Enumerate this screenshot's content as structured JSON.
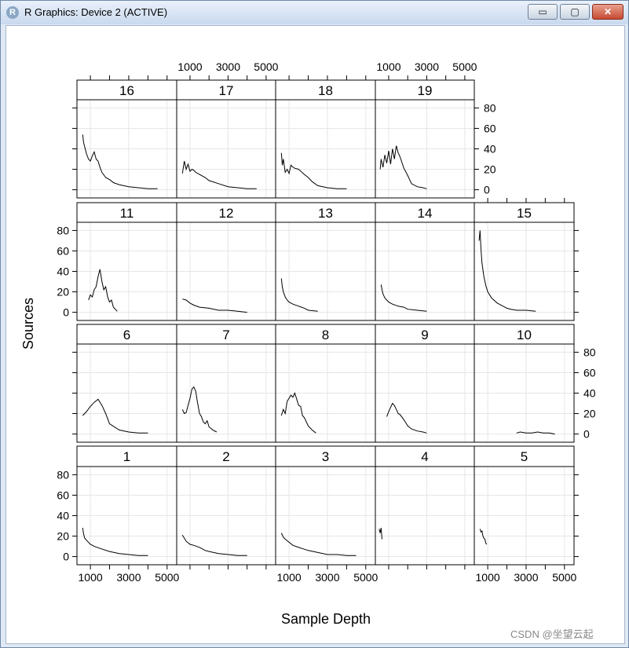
{
  "window": {
    "title": "R Graphics: Device 2 (ACTIVE)",
    "buttons": {
      "minimize": "▭",
      "maximize": "▢",
      "close": "✕"
    }
  },
  "chart_data": {
    "type": "line",
    "layout": "lattice 5 columns x 4 rows, panels numbered 1-5 bottom row upward to 16-19 top row",
    "xlabel": "Sample Depth",
    "ylabel": "Sources",
    "xticks": [
      "1000",
      "3000",
      "5000"
    ],
    "yticks": [
      "0",
      "20",
      "40",
      "60",
      "80"
    ],
    "xlim": [
      300,
      5500
    ],
    "ylim": [
      -8,
      88
    ],
    "grid": true,
    "panels": [
      {
        "label": "1",
        "x": [
          600,
          650,
          700,
          800,
          1000,
          1200,
          1500,
          2000,
          2500,
          3000,
          3500,
          4000
        ],
        "y": [
          28,
          22,
          18,
          16,
          12,
          10,
          8,
          5,
          3,
          2,
          1,
          1
        ]
      },
      {
        "label": "2",
        "x": [
          600,
          700,
          800,
          1000,
          1200,
          1500,
          1800,
          2000,
          2500,
          3000,
          3500,
          4000
        ],
        "y": [
          21,
          18,
          15,
          12,
          11,
          9,
          6,
          5,
          3,
          2,
          1,
          1
        ]
      },
      {
        "label": "3",
        "x": [
          600,
          700,
          800,
          1000,
          1200,
          1500,
          2000,
          2500,
          3000,
          3500,
          4000,
          4500
        ],
        "y": [
          23,
          19,
          17,
          14,
          11,
          9,
          6,
          4,
          2,
          2,
          1,
          1
        ]
      },
      {
        "label": "4",
        "x": [
          500,
          550,
          600,
          650
        ],
        "y": [
          27,
          23,
          28,
          17
        ]
      },
      {
        "label": "5",
        "x": [
          600,
          650,
          700,
          750,
          800,
          850,
          900,
          950
        ],
        "y": [
          27,
          24,
          25,
          20,
          18,
          17,
          13,
          12
        ]
      },
      {
        "label": "6",
        "x": [
          600,
          800,
          1000,
          1200,
          1400,
          1600,
          1800,
          2000,
          2500,
          3000,
          3500,
          4000
        ],
        "y": [
          18,
          22,
          27,
          31,
          34,
          28,
          20,
          10,
          4,
          2,
          1,
          1
        ]
      },
      {
        "label": "7",
        "x": [
          600,
          700,
          800,
          900,
          1000,
          1100,
          1200,
          1300,
          1400,
          1500,
          1600,
          1700,
          1800,
          1900,
          2000,
          2200,
          2400
        ],
        "y": [
          24,
          20,
          21,
          28,
          35,
          44,
          46,
          42,
          30,
          20,
          17,
          12,
          10,
          13,
          7,
          4,
          2
        ]
      },
      {
        "label": "8",
        "x": [
          600,
          700,
          800,
          900,
          1000,
          1100,
          1200,
          1300,
          1400,
          1500,
          1600,
          1700,
          1800,
          2000,
          2200,
          2400
        ],
        "y": [
          18,
          24,
          20,
          32,
          35,
          38,
          36,
          40,
          34,
          28,
          27,
          18,
          16,
          8,
          4,
          1
        ]
      },
      {
        "label": "9",
        "x": [
          900,
          1000,
          1100,
          1200,
          1300,
          1400,
          1500,
          1600,
          1800,
          2000,
          2200,
          2500,
          2800,
          3000
        ],
        "y": [
          17,
          22,
          26,
          30,
          28,
          24,
          20,
          19,
          14,
          8,
          5,
          3,
          2,
          1
        ]
      },
      {
        "label": "10",
        "x": [
          2500,
          2700,
          3000,
          3300,
          3600,
          3900,
          4200,
          4500
        ],
        "y": [
          1,
          2,
          1,
          1,
          2,
          1,
          1,
          0
        ]
      },
      {
        "label": "11",
        "x": [
          900,
          1000,
          1100,
          1200,
          1300,
          1400,
          1500,
          1600,
          1700,
          1800,
          1900,
          2000,
          2100,
          2200,
          2400
        ],
        "y": [
          12,
          17,
          15,
          22,
          25,
          35,
          42,
          30,
          22,
          25,
          15,
          10,
          12,
          5,
          1
        ]
      },
      {
        "label": "12",
        "x": [
          600,
          800,
          1000,
          1200,
          1500,
          2000,
          2500,
          3000,
          3500,
          4000
        ],
        "y": [
          13,
          12,
          9,
          7,
          5,
          4,
          2,
          2,
          1,
          0
        ]
      },
      {
        "label": "13",
        "x": [
          600,
          650,
          700,
          800,
          900,
          1000,
          1200,
          1500,
          1800,
          2000,
          2500
        ],
        "y": [
          33,
          25,
          20,
          15,
          12,
          10,
          8,
          6,
          4,
          2,
          1
        ]
      },
      {
        "label": "14",
        "x": [
          600,
          650,
          700,
          800,
          900,
          1000,
          1200,
          1500,
          1800,
          2000,
          2500,
          3000
        ],
        "y": [
          27,
          22,
          18,
          14,
          12,
          10,
          8,
          6,
          5,
          3,
          2,
          1
        ]
      },
      {
        "label": "15",
        "x": [
          550,
          600,
          650,
          700,
          800,
          900,
          1000,
          1200,
          1500,
          1800,
          2000,
          2200,
          2500,
          3000,
          3500
        ],
        "y": [
          70,
          80,
          62,
          48,
          35,
          26,
          20,
          14,
          9,
          6,
          4,
          3,
          2,
          2,
          1
        ]
      },
      {
        "label": "16",
        "x": [
          600,
          650,
          700,
          800,
          900,
          1000,
          1100,
          1200,
          1300,
          1400,
          1500,
          1600,
          1800,
          2000,
          2200,
          2500,
          3000,
          3500,
          4000,
          4500
        ],
        "y": [
          54,
          46,
          42,
          35,
          30,
          28,
          33,
          37,
          30,
          28,
          22,
          17,
          12,
          10,
          7,
          5,
          3,
          2,
          1,
          1
        ]
      },
      {
        "label": "17",
        "x": [
          600,
          700,
          800,
          900,
          1000,
          1100,
          1200,
          1300,
          1500,
          1800,
          2000,
          2500,
          3000,
          3500,
          4000,
          4500
        ],
        "y": [
          16,
          28,
          20,
          25,
          18,
          20,
          19,
          17,
          15,
          12,
          9,
          6,
          3,
          2,
          1,
          1
        ]
      },
      {
        "label": "18",
        "x": [
          600,
          650,
          700,
          800,
          900,
          1000,
          1100,
          1200,
          1300,
          1500,
          1800,
          2000,
          2200,
          2500,
          3000,
          3500,
          4000
        ],
        "y": [
          36,
          24,
          30,
          17,
          20,
          16,
          24,
          22,
          21,
          20,
          15,
          12,
          8,
          4,
          2,
          1,
          1
        ]
      },
      {
        "label": "19",
        "x": [
          550,
          600,
          700,
          800,
          900,
          1000,
          1100,
          1200,
          1300,
          1400,
          1500,
          1600,
          1800,
          2000,
          2200,
          2500,
          2800,
          3000
        ],
        "y": [
          20,
          30,
          22,
          34,
          26,
          38,
          25,
          40,
          30,
          43,
          36,
          32,
          21,
          14,
          6,
          3,
          2,
          1
        ]
      }
    ]
  },
  "watermark": "CSDN @坐望云起"
}
